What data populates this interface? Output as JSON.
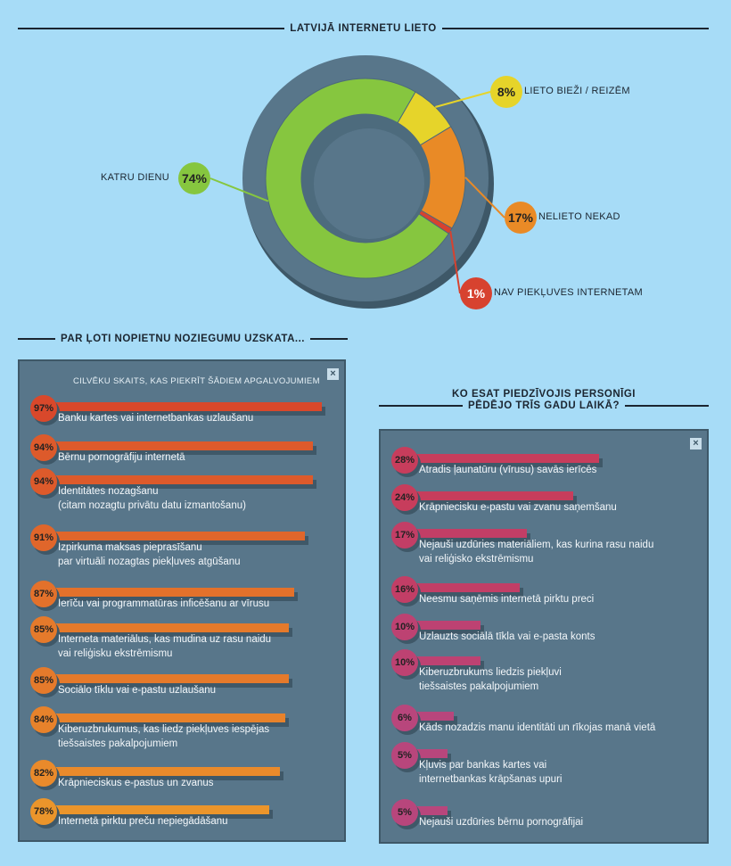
{
  "donut": {
    "title": "LATVIJĀ INTERNETU LIETO",
    "segments": [
      {
        "key": "daily",
        "value": 74,
        "label": "74%",
        "name": "KATRU DIENU",
        "color": "#86c63f"
      },
      {
        "key": "often",
        "value": 8,
        "label": "8%",
        "name": "LIETO BIEŽI / REIZĒM",
        "color": "#e6d42a"
      },
      {
        "key": "never",
        "value": 17,
        "label": "17%",
        "name": "NELIETO NEKAD",
        "color": "#e98a26"
      },
      {
        "key": "noaccess",
        "value": 1,
        "label": "1%",
        "name": "NAV PIEKĻUVES INTERNETAM",
        "color": "#d7422f"
      }
    ]
  },
  "left": {
    "section_title": "PAR ĻOTI NOPIETNU NOZIEGUMU UZSKATA...",
    "panel_header": "CILVĒKU SKAITS, KAS PIEKRĪT ŠĀDIEM APGALVOJUMIEM",
    "close_label": "×",
    "items": [
      {
        "pct": "97%",
        "value": 97,
        "lines": [
          "Banku kartes vai internetbankas uzlaušanu"
        ],
        "color": "#d9482b"
      },
      {
        "pct": "94%",
        "value": 94,
        "lines": [
          "Bērnu pornogrāfiju internetā"
        ],
        "color": "#dd5a2b"
      },
      {
        "pct": "94%",
        "value": 94,
        "lines": [
          "Identitātes nozagšanu",
          "(citam nozagtu privātu datu izmantošanu)"
        ],
        "color": "#dd5a2b"
      },
      {
        "pct": "91%",
        "value": 91,
        "lines": [
          "Izpirkuma maksas pieprasīšanu",
          "par virtuāli nozagtas piekļuves atgūšanu"
        ],
        "color": "#e0662b"
      },
      {
        "pct": "87%",
        "value": 87,
        "lines": [
          "Ierīču vai programmatūras inficēšanu ar vīrusu"
        ],
        "color": "#e3712b"
      },
      {
        "pct": "85%",
        "value": 85,
        "lines": [
          "Interneta materiālus, kas mudina uz rasu naidu",
          "vai reliģisku ekstrēmismu"
        ],
        "color": "#e57a2b"
      },
      {
        "pct": "85%",
        "value": 85,
        "lines": [
          "Sociālo tīklu vai e-pastu uzlaušanu"
        ],
        "color": "#e57a2b"
      },
      {
        "pct": "84%",
        "value": 84,
        "lines": [
          "Kiberuzbrukumus, kas liedz piekļuves iespējas",
          "tiešsaistes pakalpojumiem"
        ],
        "color": "#e7822b"
      },
      {
        "pct": "82%",
        "value": 82,
        "lines": [
          "Krāpnieciskus e-pastus un zvanus"
        ],
        "color": "#e98a2b"
      },
      {
        "pct": "78%",
        "value": 78,
        "lines": [
          "Internetā pirktu preču nepiegādāšanu"
        ],
        "color": "#eb952b"
      }
    ]
  },
  "right": {
    "section_title_1": "KO ESAT PIEDZĪVOJIS PERSONĪGI",
    "section_title_2": "PĒDĒJO TRĪS GADU LAIKĀ?",
    "close_label": "×",
    "items": [
      {
        "pct": "28%",
        "value": 28,
        "lines": [
          "Atradis ļaunatūru (vīrusu) savās ierīcēs"
        ],
        "color": "#c73d5c"
      },
      {
        "pct": "24%",
        "value": 24,
        "lines": [
          "Krāpniecisku e-pastu vai zvanu saņemšanu"
        ],
        "color": "#c73d5c"
      },
      {
        "pct": "17%",
        "value": 17,
        "lines": [
          "Nejauši uzdūries materiāliem, kas kurina rasu naidu",
          "vai reliģisko ekstrēmismu"
        ],
        "color": "#c23e66"
      },
      {
        "pct": "16%",
        "value": 16,
        "lines": [
          "Neesmu saņēmis internetā pirktu preci"
        ],
        "color": "#c23e66"
      },
      {
        "pct": "10%",
        "value": 10,
        "lines": [
          "Uzlauzts sociālā tīkla vai e-pasta konts"
        ],
        "color": "#bd4272"
      },
      {
        "pct": "10%",
        "value": 10,
        "lines": [
          "Kiberuzbrukums liedzis piekļuvi",
          "tiešsaistes pakalpojumiem"
        ],
        "color": "#bd4272"
      },
      {
        "pct": "6%",
        "value": 6,
        "lines": [
          "Kāds nozadzis manu identitāti un rīkojas manā vietā"
        ],
        "color": "#b8467c"
      },
      {
        "pct": "5%",
        "value": 5,
        "lines": [
          "Kļuvis par bankas kartes vai",
          "internetbankas krāpšanas upuri"
        ],
        "color": "#b8467c"
      },
      {
        "pct": "5%",
        "value": 5,
        "lines": [
          "Nejauši uzdūries bērnu pornogrāfijai"
        ],
        "color": "#b8467c"
      }
    ]
  },
  "chart_data": [
    {
      "type": "pie",
      "title": "LATVIJĀ INTERNETU LIETO",
      "categories": [
        "KATRU DIENU",
        "LIETO BIEŽI / REIZĒM",
        "NELIETO NEKAD",
        "NAV PIEKĻUVES INTERNETAM"
      ],
      "values": [
        74,
        8,
        17,
        1
      ]
    },
    {
      "type": "bar",
      "title": "PAR ĻOTI NOPIETNU NOZIEGUMU UZSKATA...",
      "subtitle": "CILVĒKU SKAITS, KAS PIEKRĪT ŠĀDIEM APGALVOJUMIEM",
      "values": [
        97,
        94,
        94,
        91,
        87,
        85,
        85,
        84,
        82,
        78
      ]
    },
    {
      "type": "bar",
      "title": "KO ESAT PIEDZĪVOJIS PERSONĪGI PĒDĒJO TRĪS GADU LAIKĀ?",
      "values": [
        28,
        24,
        17,
        16,
        10,
        10,
        6,
        5,
        5
      ]
    }
  ]
}
